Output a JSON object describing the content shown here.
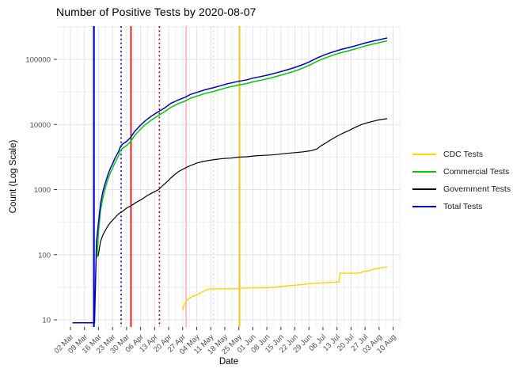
{
  "title": "Number of Positive Tests by  2020-08-07",
  "x_axis": {
    "label": "Date"
  },
  "y_axis": {
    "label": "Count (Log Scale)"
  },
  "legend": {
    "items": [
      {
        "label": "CDC Tests",
        "color": "#FFD400"
      },
      {
        "label": "Commercial Tests",
        "color": "#00CC00"
      },
      {
        "label": "Government Tests",
        "color": "#000000"
      },
      {
        "label": "Total Tests",
        "color": "#0000CC"
      }
    ]
  },
  "colors": {
    "grid_major": "#e3e3e3",
    "grid_minor": "#efefef",
    "tick_mark": "#343434",
    "tick_text": "#4d4d4d"
  },
  "chart_data": {
    "type": "line",
    "title": "Number of Positive Tests by  2020-08-07",
    "xlabel": "Date",
    "ylabel": "Count (Log Scale)",
    "yscale": "log10",
    "ylim": [
      8,
      320000
    ],
    "grid": true,
    "legend_position": "right",
    "x_unit": "days since first tick (02 Mar 2020), ticks weekly",
    "x_tick_labels": [
      "02 Mar",
      "09 Mar",
      "16 Mar",
      "23 Mar",
      "30 Mar",
      "06 Apr",
      "13 Apr",
      "20 Apr",
      "27 Apr",
      "04 May",
      "11 May",
      "18 May",
      "25 May",
      "01 Jun",
      "08 Jun",
      "15 Jun",
      "22 Jun",
      "29 Jun",
      "06 Jul",
      "13 Jul",
      "20 Jul",
      "27 Jul",
      "03 Aug",
      "10 Aug"
    ],
    "y_tick_labels": [
      "10",
      "100",
      "1000",
      "10000",
      "100000"
    ],
    "y_tick_values": [
      10,
      100,
      1000,
      10000,
      100000
    ],
    "vlines": [
      {
        "day": 11.7,
        "color": "#0000CC",
        "style": "solid"
      },
      {
        "day": 25.3,
        "color": "#0000BB",
        "style": "dotted"
      },
      {
        "day": 30.2,
        "color": "#DD0000",
        "style": "solid"
      },
      {
        "day": 44.4,
        "color": "#A50000",
        "style": "dotted"
      },
      {
        "day": 57.7,
        "color": "#FFB6C1",
        "style": "solid"
      },
      {
        "day": 71.3,
        "color": "#FFCCD5",
        "style": "dotted"
      },
      {
        "day": 84.4,
        "color": "#EEC500",
        "style": "solid"
      }
    ],
    "series": [
      {
        "name": "CDC Tests",
        "color": "#FFD400",
        "width": 1.4,
        "points": [
          [
            56,
            14
          ],
          [
            56.5,
            16
          ],
          [
            57,
            18
          ],
          [
            58,
            20
          ],
          [
            59,
            21
          ],
          [
            60,
            22
          ],
          [
            61,
            23
          ],
          [
            63,
            24
          ],
          [
            64,
            25
          ],
          [
            65,
            26
          ],
          [
            66,
            27
          ],
          [
            67,
            28
          ],
          [
            68,
            29
          ],
          [
            70,
            30
          ],
          [
            80,
            30
          ],
          [
            90,
            31
          ],
          [
            98,
            31
          ],
          [
            103,
            32
          ],
          [
            107,
            33
          ],
          [
            112,
            34
          ],
          [
            116,
            35
          ],
          [
            120,
            36
          ],
          [
            126,
            37
          ],
          [
            132,
            38
          ],
          [
            134,
            38
          ],
          [
            134.5,
            52
          ],
          [
            143,
            52
          ],
          [
            145,
            53
          ],
          [
            146,
            55
          ],
          [
            148,
            56
          ],
          [
            150,
            58
          ],
          [
            151,
            60
          ],
          [
            153,
            61
          ],
          [
            155,
            63
          ],
          [
            158,
            65
          ]
        ]
      },
      {
        "name": "Government Tests",
        "color": "#000000",
        "width": 1.2,
        "points": [
          [
            13.8,
            95
          ],
          [
            15,
            160
          ],
          [
            16,
            195
          ],
          [
            17,
            225
          ],
          [
            18,
            255
          ],
          [
            19,
            285
          ],
          [
            20,
            315
          ],
          [
            22,
            365
          ],
          [
            24,
            425
          ],
          [
            26,
            465
          ],
          [
            28,
            520
          ],
          [
            30,
            560
          ],
          [
            33,
            640
          ],
          [
            36,
            720
          ],
          [
            38,
            800
          ],
          [
            41,
            900
          ],
          [
            44,
            1000
          ],
          [
            46,
            1150
          ],
          [
            48,
            1300
          ],
          [
            50,
            1500
          ],
          [
            52,
            1700
          ],
          [
            54,
            1900
          ],
          [
            56,
            2050
          ],
          [
            58,
            2200
          ],
          [
            60,
            2350
          ],
          [
            63,
            2550
          ],
          [
            66,
            2700
          ],
          [
            69,
            2800
          ],
          [
            72,
            2900
          ],
          [
            76,
            3000
          ],
          [
            80,
            3050
          ],
          [
            84,
            3150
          ],
          [
            88,
            3200
          ],
          [
            92,
            3300
          ],
          [
            96,
            3350
          ],
          [
            100,
            3400
          ],
          [
            104,
            3500
          ],
          [
            108,
            3600
          ],
          [
            112,
            3700
          ],
          [
            116,
            3800
          ],
          [
            120,
            3950
          ],
          [
            123,
            4200
          ],
          [
            125,
            4700
          ],
          [
            127,
            5100
          ],
          [
            129,
            5600
          ],
          [
            131,
            6100
          ],
          [
            133,
            6600
          ],
          [
            135,
            7100
          ],
          [
            137,
            7600
          ],
          [
            139,
            8100
          ],
          [
            141,
            8700
          ],
          [
            143,
            9300
          ],
          [
            145,
            9900
          ],
          [
            147,
            10400
          ],
          [
            149,
            10800
          ],
          [
            151,
            11200
          ],
          [
            153,
            11600
          ],
          [
            155,
            11900
          ],
          [
            158,
            12300
          ]
        ]
      },
      {
        "name": "Commercial Tests",
        "color": "#00CC00",
        "width": 1.5,
        "points": [
          [
            13.2,
            90
          ],
          [
            14,
            220
          ],
          [
            15,
            480
          ],
          [
            16,
            700
          ],
          [
            17,
            950
          ],
          [
            18,
            1220
          ],
          [
            19,
            1530
          ],
          [
            20,
            1830
          ],
          [
            21,
            2130
          ],
          [
            22,
            2520
          ],
          [
            23,
            2870
          ],
          [
            24,
            3300
          ],
          [
            25,
            3950
          ],
          [
            26,
            4300
          ],
          [
            28,
            4750
          ],
          [
            30,
            5450
          ],
          [
            32,
            6750
          ],
          [
            35,
            8500
          ],
          [
            37,
            9750
          ],
          [
            40,
            11500
          ],
          [
            44,
            13800
          ],
          [
            47,
            15700
          ],
          [
            50,
            18300
          ],
          [
            54,
            21000
          ],
          [
            57,
            22800
          ],
          [
            60,
            25400
          ],
          [
            63,
            27200
          ],
          [
            67,
            29800
          ],
          [
            71,
            32000
          ],
          [
            75,
            34600
          ],
          [
            78,
            36800
          ],
          [
            81,
            38600
          ],
          [
            84,
            40400
          ],
          [
            88,
            42600
          ],
          [
            91,
            45200
          ],
          [
            95,
            47900
          ],
          [
            99,
            51000
          ],
          [
            103,
            55000
          ],
          [
            107,
            59500
          ],
          [
            111,
            64800
          ],
          [
            115,
            71500
          ],
          [
            119,
            80500
          ],
          [
            123,
            93000
          ],
          [
            127,
            105000
          ],
          [
            131,
            116000
          ],
          [
            135,
            127000
          ],
          [
            139,
            136000
          ],
          [
            143,
            147000
          ],
          [
            147,
            160000
          ],
          [
            151,
            172000
          ],
          [
            155,
            183000
          ],
          [
            158,
            193000
          ]
        ]
      },
      {
        "name": "Total Tests",
        "color": "#0000CC",
        "width": 1.5,
        "points": [
          [
            1,
            9
          ],
          [
            12,
            9
          ],
          [
            12.6,
            50
          ],
          [
            13,
            160
          ],
          [
            14,
            310
          ],
          [
            15,
            610
          ],
          [
            16,
            880
          ],
          [
            17,
            1150
          ],
          [
            18,
            1450
          ],
          [
            19,
            1800
          ],
          [
            20,
            2150
          ],
          [
            21,
            2500
          ],
          [
            22,
            2950
          ],
          [
            23,
            3350
          ],
          [
            24,
            3850
          ],
          [
            25,
            4600
          ],
          [
            26,
            5000
          ],
          [
            28,
            5500
          ],
          [
            30,
            6300
          ],
          [
            32,
            7800
          ],
          [
            35,
            9800
          ],
          [
            37,
            11200
          ],
          [
            40,
            13200
          ],
          [
            44,
            15800
          ],
          [
            47,
            18000
          ],
          [
            50,
            21000
          ],
          [
            54,
            24000
          ],
          [
            57,
            26000
          ],
          [
            60,
            29000
          ],
          [
            63,
            31000
          ],
          [
            67,
            34000
          ],
          [
            71,
            36500
          ],
          [
            75,
            39500
          ],
          [
            78,
            42000
          ],
          [
            81,
            44000
          ],
          [
            84,
            46000
          ],
          [
            88,
            48500
          ],
          [
            91,
            51500
          ],
          [
            95,
            54500
          ],
          [
            99,
            58000
          ],
          [
            103,
            62500
          ],
          [
            107,
            67500
          ],
          [
            111,
            73500
          ],
          [
            115,
            81000
          ],
          [
            119,
            91000
          ],
          [
            123,
            105000
          ],
          [
            127,
            118000
          ],
          [
            131,
            130000
          ],
          [
            135,
            142000
          ],
          [
            139,
            152000
          ],
          [
            143,
            164000
          ],
          [
            147,
            178000
          ],
          [
            151,
            191000
          ],
          [
            155,
            203000
          ],
          [
            158,
            213000
          ]
        ]
      }
    ]
  }
}
